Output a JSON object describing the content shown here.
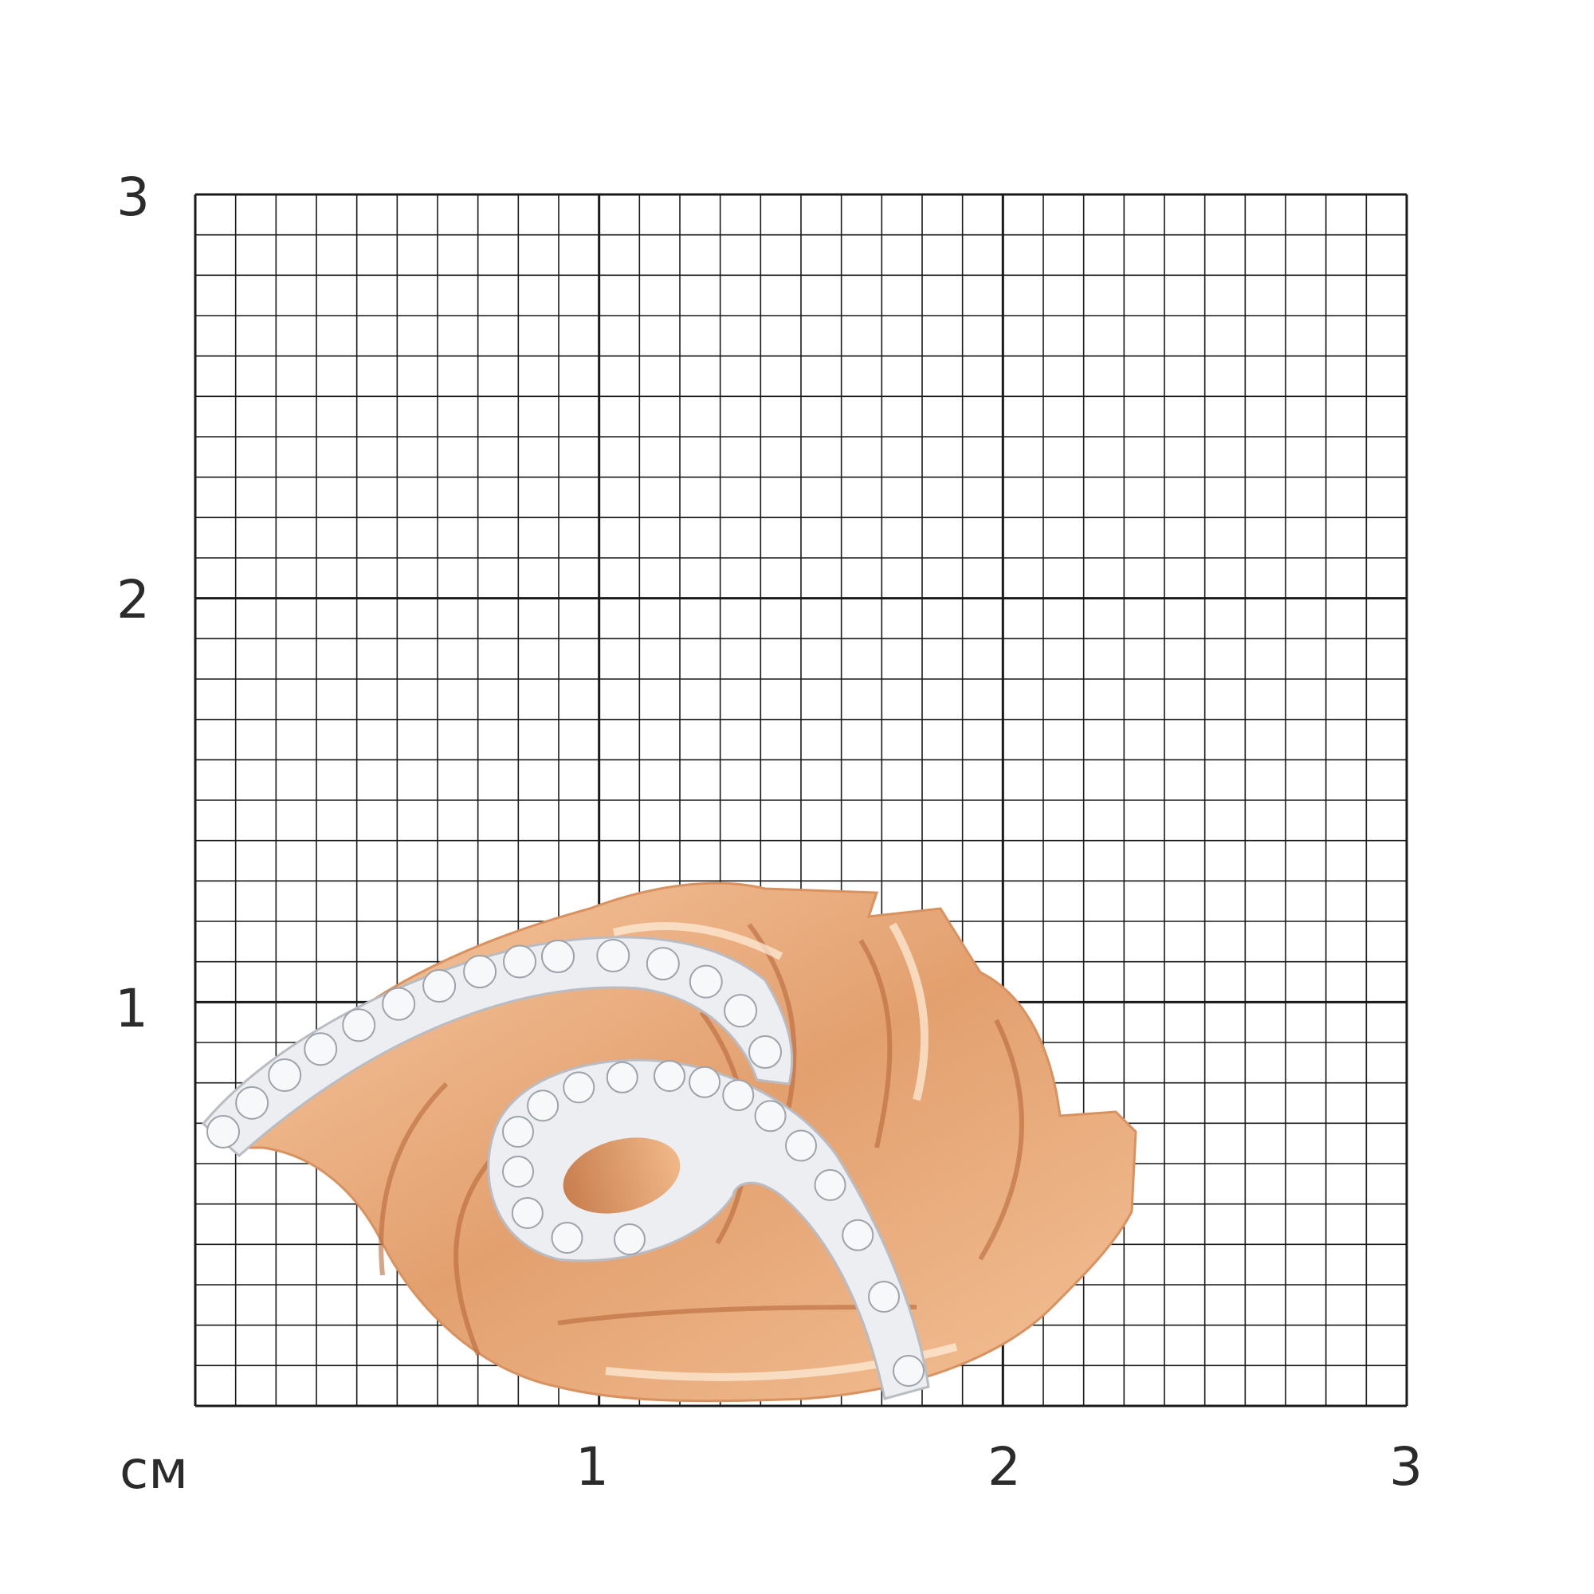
{
  "scale": {
    "unit_label": "см",
    "y_labels": [
      "3",
      "2",
      "1"
    ],
    "x_labels": [
      "1",
      "2",
      "3"
    ]
  },
  "colors": {
    "grid": "#1a1a1a",
    "gold": "#e8a77a",
    "silver": "#e4e6ea"
  }
}
